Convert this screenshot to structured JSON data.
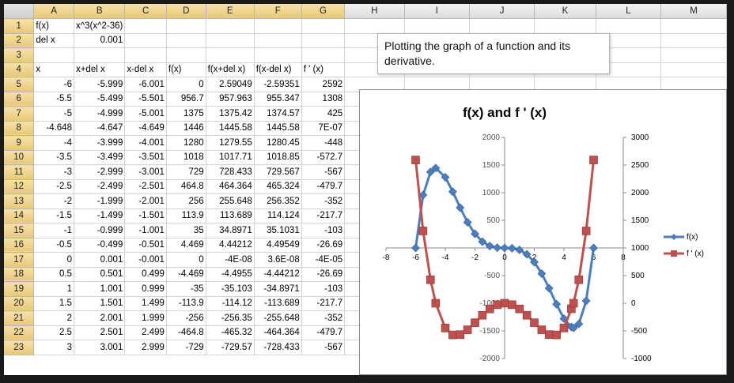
{
  "columns": [
    "A",
    "B",
    "C",
    "D",
    "E",
    "F",
    "G",
    "H",
    "I",
    "J",
    "K",
    "L",
    "M"
  ],
  "rows": [
    [
      "f(x)",
      "x^3(x^2-36)",
      "",
      "",
      "",
      "",
      ""
    ],
    [
      "del x",
      "0.001",
      "",
      "",
      "",
      "",
      ""
    ],
    [
      "",
      "",
      "",
      "",
      "",
      "",
      ""
    ],
    [
      "x",
      "x+del x",
      "x-del x",
      "f(x)",
      "f(x+del x)",
      "f(x-del x)",
      "f ' (x)"
    ],
    [
      "-6",
      "-5.999",
      "-6.001",
      "0",
      "2.59049",
      "-2.59351",
      "2592"
    ],
    [
      "-5.5",
      "-5.499",
      "-5.501",
      "956.7",
      "957.963",
      "955.347",
      "1308"
    ],
    [
      "-5",
      "-4.999",
      "-5.001",
      "1375",
      "1375.42",
      "1374.57",
      "425"
    ],
    [
      "-4.648",
      "-4.647",
      "-4.649",
      "1446",
      "1445.58",
      "1445.58",
      "7E-07"
    ],
    [
      "-4",
      "-3.999",
      "-4.001",
      "1280",
      "1279.55",
      "1280.45",
      "-448"
    ],
    [
      "-3.5",
      "-3.499",
      "-3.501",
      "1018",
      "1017.71",
      "1018.85",
      "-572.7"
    ],
    [
      "-3",
      "-2.999",
      "-3.001",
      "729",
      "728.433",
      "729.567",
      "-567"
    ],
    [
      "-2.5",
      "-2.499",
      "-2.501",
      "464.8",
      "464.364",
      "465.324",
      "-479.7"
    ],
    [
      "-2",
      "-1.999",
      "-2.001",
      "256",
      "255.648",
      "256.352",
      "-352"
    ],
    [
      "-1.5",
      "-1.499",
      "-1.501",
      "113.9",
      "113.689",
      "114.124",
      "-217.7"
    ],
    [
      "-1",
      "-0.999",
      "-1.001",
      "35",
      "34.8971",
      "35.1031",
      "-103"
    ],
    [
      "-0.5",
      "-0.499",
      "-0.501",
      "4.469",
      "4.44212",
      "4.49549",
      "-26.69"
    ],
    [
      "0",
      "0.001",
      "-0.001",
      "0",
      "-4E-08",
      "3.6E-08",
      "-4E-05"
    ],
    [
      "0.5",
      "0.501",
      "0.499",
      "-4.469",
      "-4.4955",
      "-4.44212",
      "-26.69"
    ],
    [
      "1",
      "1.001",
      "0.999",
      "-35",
      "-35.103",
      "-34.8971",
      "-103"
    ],
    [
      "1.5",
      "1.501",
      "1.499",
      "-113.9",
      "-114.12",
      "-113.689",
      "-217.7"
    ],
    [
      "2",
      "2.001",
      "1.999",
      "-256",
      "-256.35",
      "-255.648",
      "-352"
    ],
    [
      "2.5",
      "2.501",
      "2.499",
      "-464.8",
      "-465.32",
      "-464.364",
      "-479.7"
    ],
    [
      "3",
      "3.001",
      "2.999",
      "-729",
      "-729.57",
      "-728.433",
      "-567"
    ]
  ],
  "textbox": "Plotting the graph of a function and its derivative.",
  "chart_data": {
    "type": "line",
    "title": "f(x) and f ' (x)",
    "x_ticks": [
      -8,
      -6,
      -4,
      -2,
      0,
      2,
      4,
      6,
      8
    ],
    "y_left_ticks": [
      2000,
      1500,
      1000,
      500,
      0,
      -500,
      -1000,
      -1500,
      -2000
    ],
    "y_right_ticks": [
      3000,
      2500,
      2000,
      1500,
      1000,
      500,
      0,
      -500,
      -1000
    ],
    "xlim": [
      -8,
      8
    ],
    "ylim_left": [
      -2000,
      2000
    ],
    "ylim_right": [
      -1000,
      3000
    ],
    "legend_position": "right",
    "series": [
      {
        "name": "f(x)",
        "axis": "left",
        "color": "#4a7ebf",
        "marker": "diamond",
        "x": [
          -6,
          -5.5,
          -5,
          -4.648,
          -4,
          -3.5,
          -3,
          -2.5,
          -2,
          -1.5,
          -1,
          -0.5,
          0,
          0.5,
          1,
          1.5,
          2,
          2.5,
          3,
          3.5,
          4,
          4.5,
          4.648,
          5,
          5.5,
          6
        ],
        "y": [
          0,
          956.7,
          1375,
          1446,
          1280,
          1018,
          729,
          464.8,
          256,
          113.9,
          35,
          4.469,
          0,
          -4.469,
          -35,
          -113.9,
          -256,
          -464.8,
          -729,
          -1018,
          -1280,
          -1430,
          -1446,
          -1375,
          -956.7,
          0
        ]
      },
      {
        "name": "f ' (x)",
        "axis": "right",
        "color": "#c0504d",
        "marker": "square",
        "x": [
          -6,
          -5.5,
          -5,
          -4.648,
          -4,
          -3.5,
          -3,
          -2.5,
          -2,
          -1.5,
          -1,
          -0.5,
          0,
          0.5,
          1,
          1.5,
          2,
          2.5,
          3,
          3.5,
          4,
          4.5,
          4.648,
          5,
          5.5,
          6
        ],
        "y": [
          2592,
          1308,
          425,
          0,
          -448,
          -572.7,
          -567,
          -479.7,
          -352,
          -217.7,
          -103,
          -26.69,
          0,
          -26.69,
          -103,
          -217.7,
          -352,
          -479.7,
          -567,
          -572.7,
          -448,
          -100,
          0,
          425,
          1308,
          2592
        ]
      }
    ]
  }
}
